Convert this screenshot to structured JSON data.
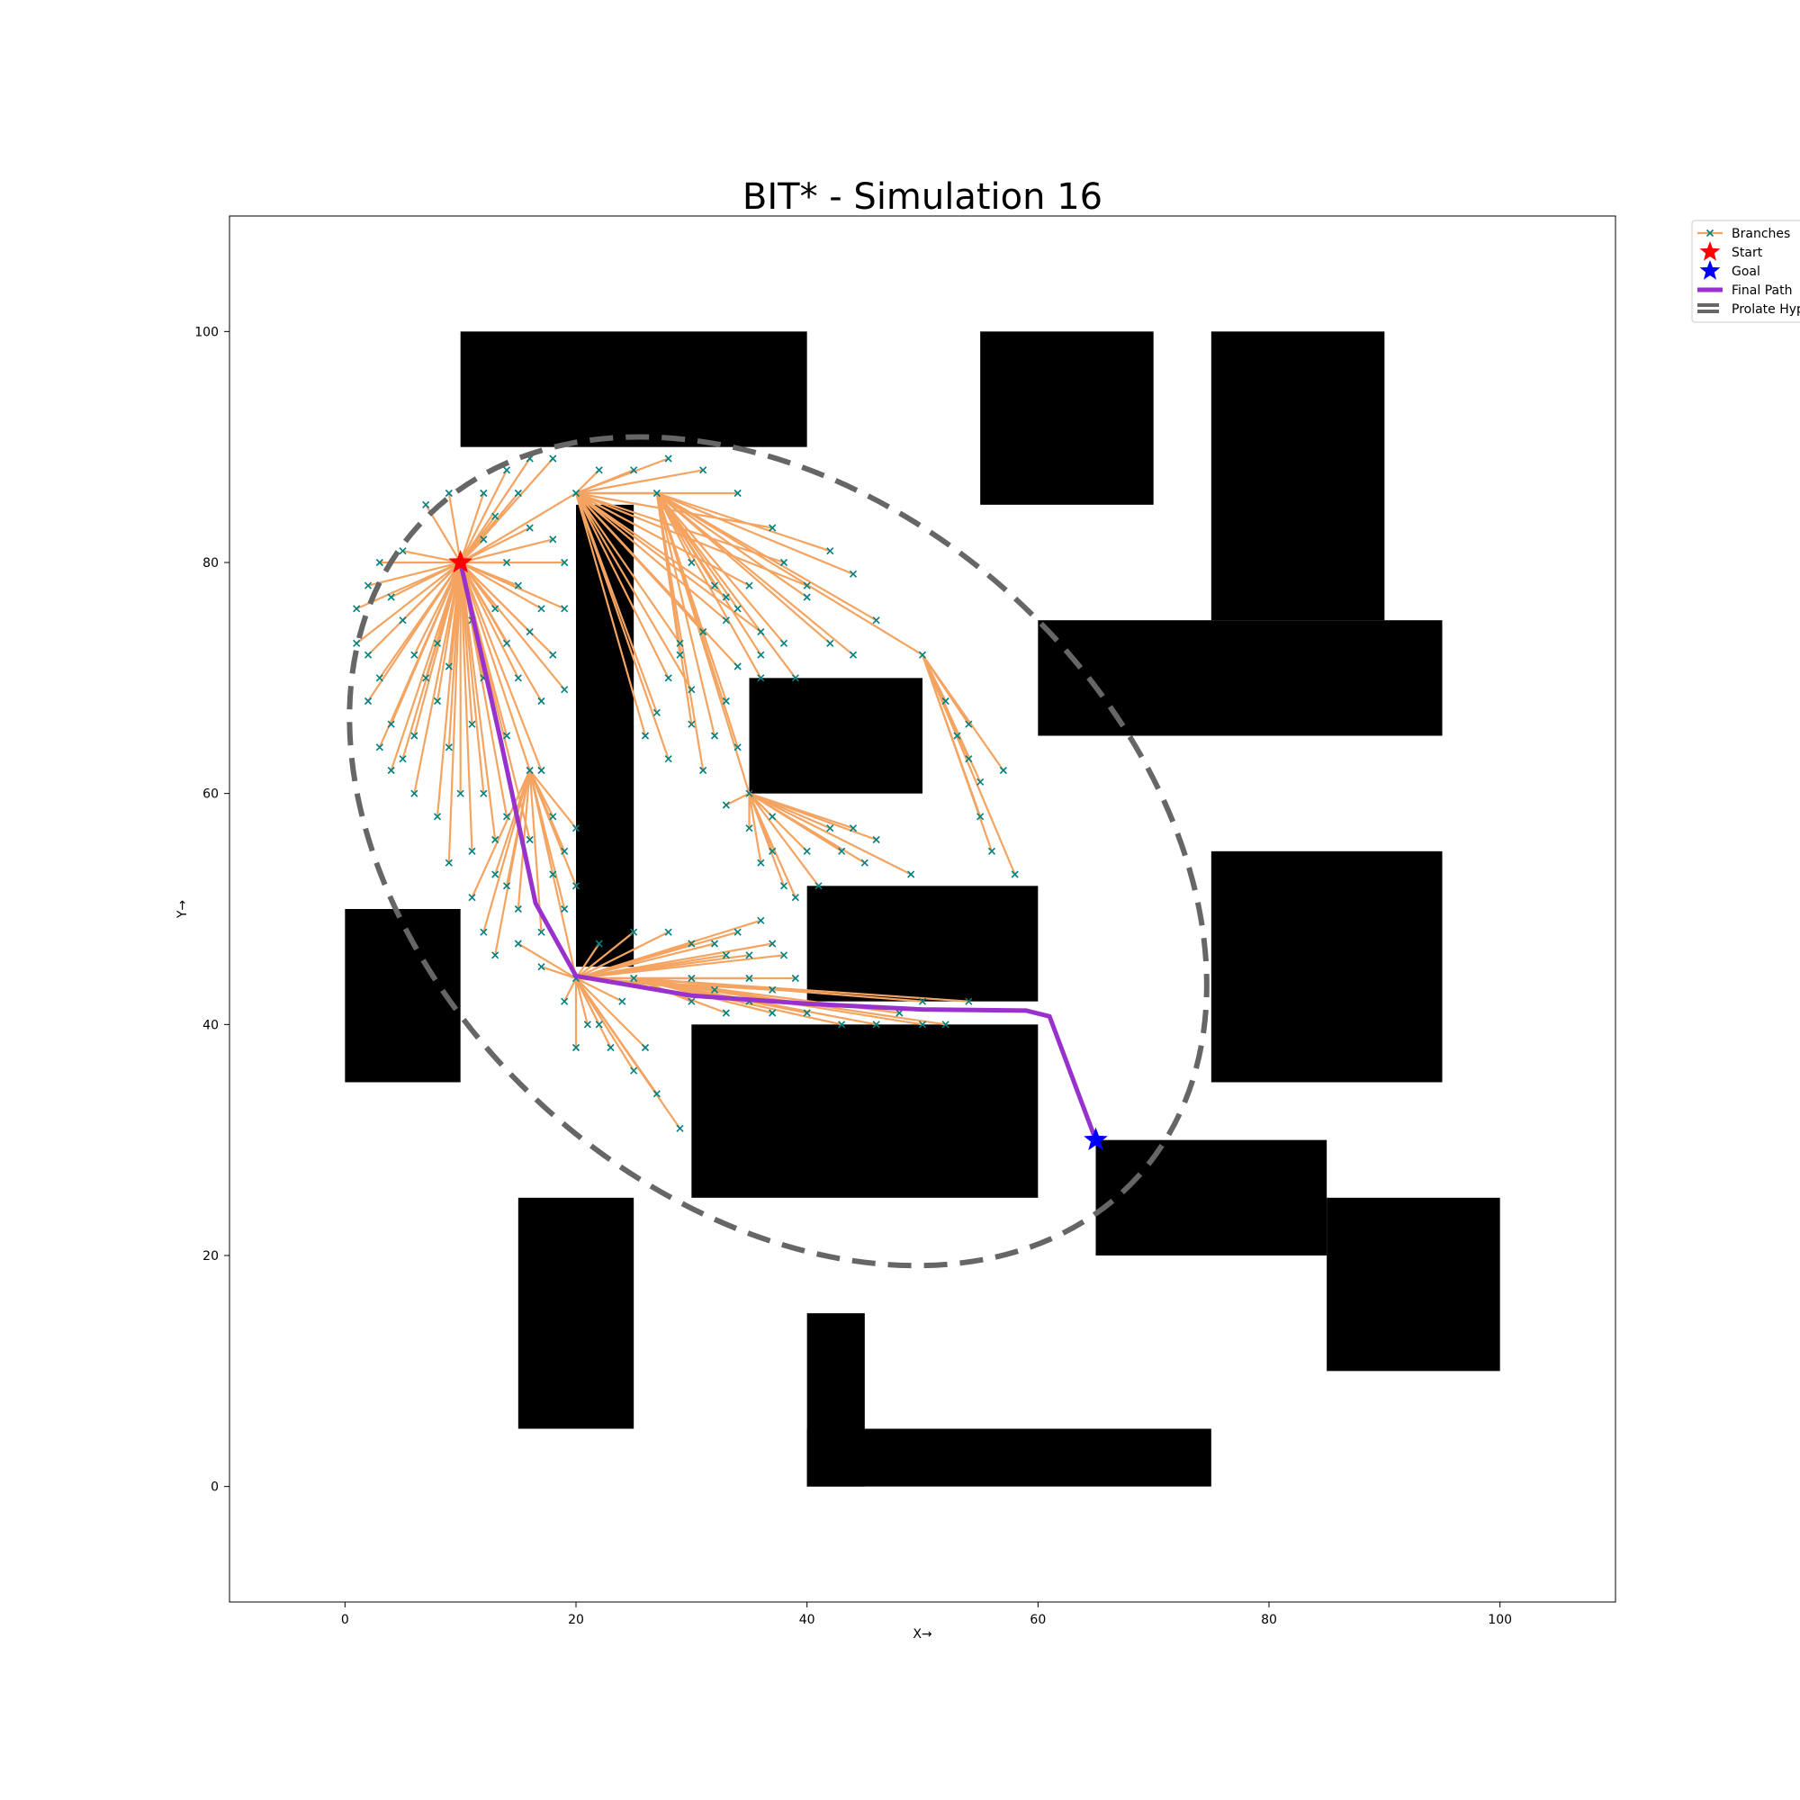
{
  "chart_data": {
    "type": "scatter",
    "title": "BIT* - Simulation 16",
    "xlabel": "X→",
    "ylabel": "Y→",
    "xlim": [
      -10,
      110
    ],
    "ylim": [
      -10,
      110
    ],
    "x_ticks": [
      0,
      20,
      40,
      60,
      80,
      100
    ],
    "y_ticks": [
      0,
      20,
      40,
      60,
      80,
      100
    ],
    "grid": false,
    "legend_placement": "outside-top-right",
    "legend": [
      {
        "label": "Branches",
        "kind": "branch"
      },
      {
        "label": "Start",
        "kind": "start"
      },
      {
        "label": "Goal",
        "kind": "goal"
      },
      {
        "label": "Final Path",
        "kind": "path"
      },
      {
        "label": "Prolate Hyperspheroid",
        "kind": "ellipse"
      }
    ],
    "colors": {
      "branch": "#f4a460",
      "sample": "#008080",
      "start": "#ff0000",
      "goal": "#0000ff",
      "path": "#9932cc",
      "ellipse": "#666666",
      "obstacle": "#000000"
    },
    "start": [
      10,
      80
    ],
    "goal": [
      65,
      30
    ],
    "obstacles": [
      {
        "x": 10,
        "y": 90,
        "w": 30,
        "h": 10
      },
      {
        "x": 55,
        "y": 85,
        "w": 15,
        "h": 15
      },
      {
        "x": 75,
        "y": 75,
        "w": 15,
        "h": 25
      },
      {
        "x": 60,
        "y": 65,
        "w": 35,
        "h": 10
      },
      {
        "x": 20,
        "y": 45,
        "w": 5,
        "h": 40
      },
      {
        "x": 35,
        "y": 60,
        "w": 15,
        "h": 10
      },
      {
        "x": 40,
        "y": 42,
        "w": 20,
        "h": 10
      },
      {
        "x": 75,
        "y": 35,
        "w": 20,
        "h": 20
      },
      {
        "x": 0,
        "y": 35,
        "w": 10,
        "h": 15
      },
      {
        "x": 30,
        "y": 25,
        "w": 30,
        "h": 15
      },
      {
        "x": 65,
        "y": 20,
        "w": 20,
        "h": 10
      },
      {
        "x": 85,
        "y": 10,
        "w": 15,
        "h": 15
      },
      {
        "x": 15,
        "y": 5,
        "w": 10,
        "h": 20
      },
      {
        "x": 40,
        "y": 0,
        "w": 5,
        "h": 15
      },
      {
        "x": 40,
        "y": 0,
        "w": 35,
        "h": 5
      }
    ],
    "final_path": [
      [
        10,
        80
      ],
      [
        13.5,
        64.5
      ],
      [
        16.5,
        50.5
      ],
      [
        20,
        44.2
      ],
      [
        30,
        42.5
      ],
      [
        40,
        41.8
      ],
      [
        50,
        41.3
      ],
      [
        59,
        41.2
      ],
      [
        61,
        40.7
      ],
      [
        63.5,
        34
      ],
      [
        65,
        30
      ]
    ],
    "ellipse": {
      "cx": 37.5,
      "cy": 55,
      "rx": 42,
      "ry": 30,
      "angle_deg": -42
    },
    "tree_nodes": [
      [
        10,
        80
      ],
      [
        20,
        86
      ],
      [
        27,
        86
      ],
      [
        35,
        60
      ],
      [
        20,
        44
      ],
      [
        50,
        72
      ],
      [
        25,
        44
      ],
      [
        16,
        62
      ]
    ],
    "branches": [
      {
        "from": 0,
        "to": [
          [
            7,
            85
          ],
          [
            9,
            86
          ],
          [
            12,
            86
          ],
          [
            14,
            88
          ],
          [
            16,
            89
          ],
          [
            18,
            89
          ],
          [
            3,
            80
          ],
          [
            5,
            81
          ],
          [
            2,
            78
          ],
          [
            1,
            76
          ],
          [
            4,
            77
          ],
          [
            5,
            75
          ],
          [
            1,
            73
          ],
          [
            3,
            70
          ],
          [
            2,
            68
          ],
          [
            4,
            66
          ],
          [
            7,
            70
          ],
          [
            9,
            71
          ],
          [
            8,
            68
          ],
          [
            6,
            65
          ],
          [
            5,
            63
          ],
          [
            9,
            64
          ],
          [
            11,
            66
          ],
          [
            12,
            70
          ],
          [
            11,
            75
          ],
          [
            13,
            76
          ],
          [
            15,
            78
          ],
          [
            17,
            76
          ],
          [
            18,
            72
          ],
          [
            15,
            70
          ],
          [
            19,
            80
          ],
          [
            16,
            83
          ],
          [
            15,
            86
          ],
          [
            13,
            84
          ],
          [
            19,
            76
          ],
          [
            18,
            82
          ],
          [
            12,
            82
          ],
          [
            14,
            80
          ],
          [
            16,
            74
          ],
          [
            14,
            73
          ],
          [
            10,
            60
          ],
          [
            8,
            58
          ],
          [
            6,
            60
          ],
          [
            4,
            62
          ],
          [
            3,
            64
          ],
          [
            12,
            60
          ],
          [
            13,
            56
          ],
          [
            11,
            55
          ],
          [
            9,
            54
          ],
          [
            2,
            72
          ],
          [
            6,
            72
          ],
          [
            8,
            73
          ],
          [
            14,
            65
          ],
          [
            17,
            68
          ],
          [
            19,
            69
          ],
          [
            17,
            62
          ],
          [
            16,
            56
          ],
          [
            14,
            58
          ]
        ]
      },
      {
        "from": 1,
        "to": [
          [
            22,
            88
          ],
          [
            25,
            88
          ],
          [
            28,
            89
          ],
          [
            31,
            88
          ],
          [
            34,
            86
          ],
          [
            37,
            83
          ],
          [
            38,
            80
          ],
          [
            40,
            78
          ],
          [
            35,
            78
          ],
          [
            33,
            75
          ],
          [
            31,
            74
          ],
          [
            29,
            73
          ],
          [
            28,
            70
          ],
          [
            27,
            67
          ],
          [
            26,
            65
          ],
          [
            28,
            63
          ],
          [
            33,
            77
          ],
          [
            36,
            74
          ],
          [
            34,
            71
          ],
          [
            30,
            69
          ]
        ]
      },
      {
        "from": 2,
        "to": [
          [
            30,
            80
          ],
          [
            32,
            78
          ],
          [
            34,
            76
          ],
          [
            36,
            72
          ],
          [
            39,
            70
          ],
          [
            42,
            73
          ],
          [
            44,
            72
          ],
          [
            46,
            75
          ],
          [
            44,
            79
          ],
          [
            42,
            81
          ],
          [
            40,
            77
          ],
          [
            38,
            73
          ],
          [
            36,
            70
          ],
          [
            33,
            68
          ],
          [
            32,
            65
          ],
          [
            34,
            64
          ],
          [
            31,
            62
          ],
          [
            30,
            66
          ],
          [
            29,
            72
          ]
        ]
      },
      {
        "from": 3,
        "to": [
          [
            37,
            55
          ],
          [
            38,
            52
          ],
          [
            40,
            55
          ],
          [
            42,
            57
          ],
          [
            44,
            57
          ],
          [
            46,
            56
          ],
          [
            49,
            53
          ],
          [
            41,
            52
          ],
          [
            39,
            51
          ],
          [
            36,
            54
          ],
          [
            35,
            57
          ],
          [
            43,
            55
          ],
          [
            45,
            54
          ],
          [
            37,
            58
          ],
          [
            33,
            59
          ]
        ]
      },
      {
        "from": 4,
        "to": [
          [
            22,
            47
          ],
          [
            25,
            48
          ],
          [
            28,
            48
          ],
          [
            30,
            47
          ],
          [
            32,
            47
          ],
          [
            34,
            48
          ],
          [
            36,
            49
          ],
          [
            37,
            47
          ],
          [
            35,
            46
          ],
          [
            33,
            46
          ],
          [
            38,
            46
          ],
          [
            30,
            44
          ],
          [
            32,
            43
          ],
          [
            35,
            44
          ],
          [
            37,
            43
          ],
          [
            39,
            44
          ],
          [
            22,
            40
          ],
          [
            23,
            38
          ],
          [
            25,
            36
          ],
          [
            27,
            34
          ],
          [
            29,
            31
          ],
          [
            26,
            38
          ],
          [
            24,
            42
          ],
          [
            21,
            40
          ],
          [
            20,
            38
          ],
          [
            19,
            42
          ],
          [
            17,
            45
          ],
          [
            15,
            47
          ]
        ]
      },
      {
        "from": 5,
        "to": [
          [
            52,
            68
          ],
          [
            53,
            65
          ],
          [
            54,
            63
          ],
          [
            55,
            61
          ],
          [
            55,
            58
          ],
          [
            56,
            55
          ],
          [
            58,
            53
          ],
          [
            54,
            66
          ],
          [
            57,
            62
          ]
        ]
      },
      {
        "from": 6,
        "to": [
          [
            30,
            42
          ],
          [
            33,
            41
          ],
          [
            35,
            42
          ],
          [
            37,
            41
          ],
          [
            40,
            41
          ],
          [
            43,
            40
          ],
          [
            46,
            40
          ],
          [
            48,
            41
          ],
          [
            50,
            40
          ],
          [
            52,
            40
          ],
          [
            54,
            42
          ],
          [
            50,
            42
          ]
        ]
      },
      {
        "from": 7,
        "to": [
          [
            18,
            58
          ],
          [
            19,
            55
          ],
          [
            20,
            52
          ],
          [
            19,
            50
          ],
          [
            17,
            48
          ],
          [
            18,
            53
          ],
          [
            20,
            57
          ],
          [
            14,
            52
          ],
          [
            15,
            50
          ],
          [
            12,
            48
          ],
          [
            13,
            46
          ],
          [
            11,
            51
          ],
          [
            13,
            53
          ]
        ]
      }
    ]
  }
}
